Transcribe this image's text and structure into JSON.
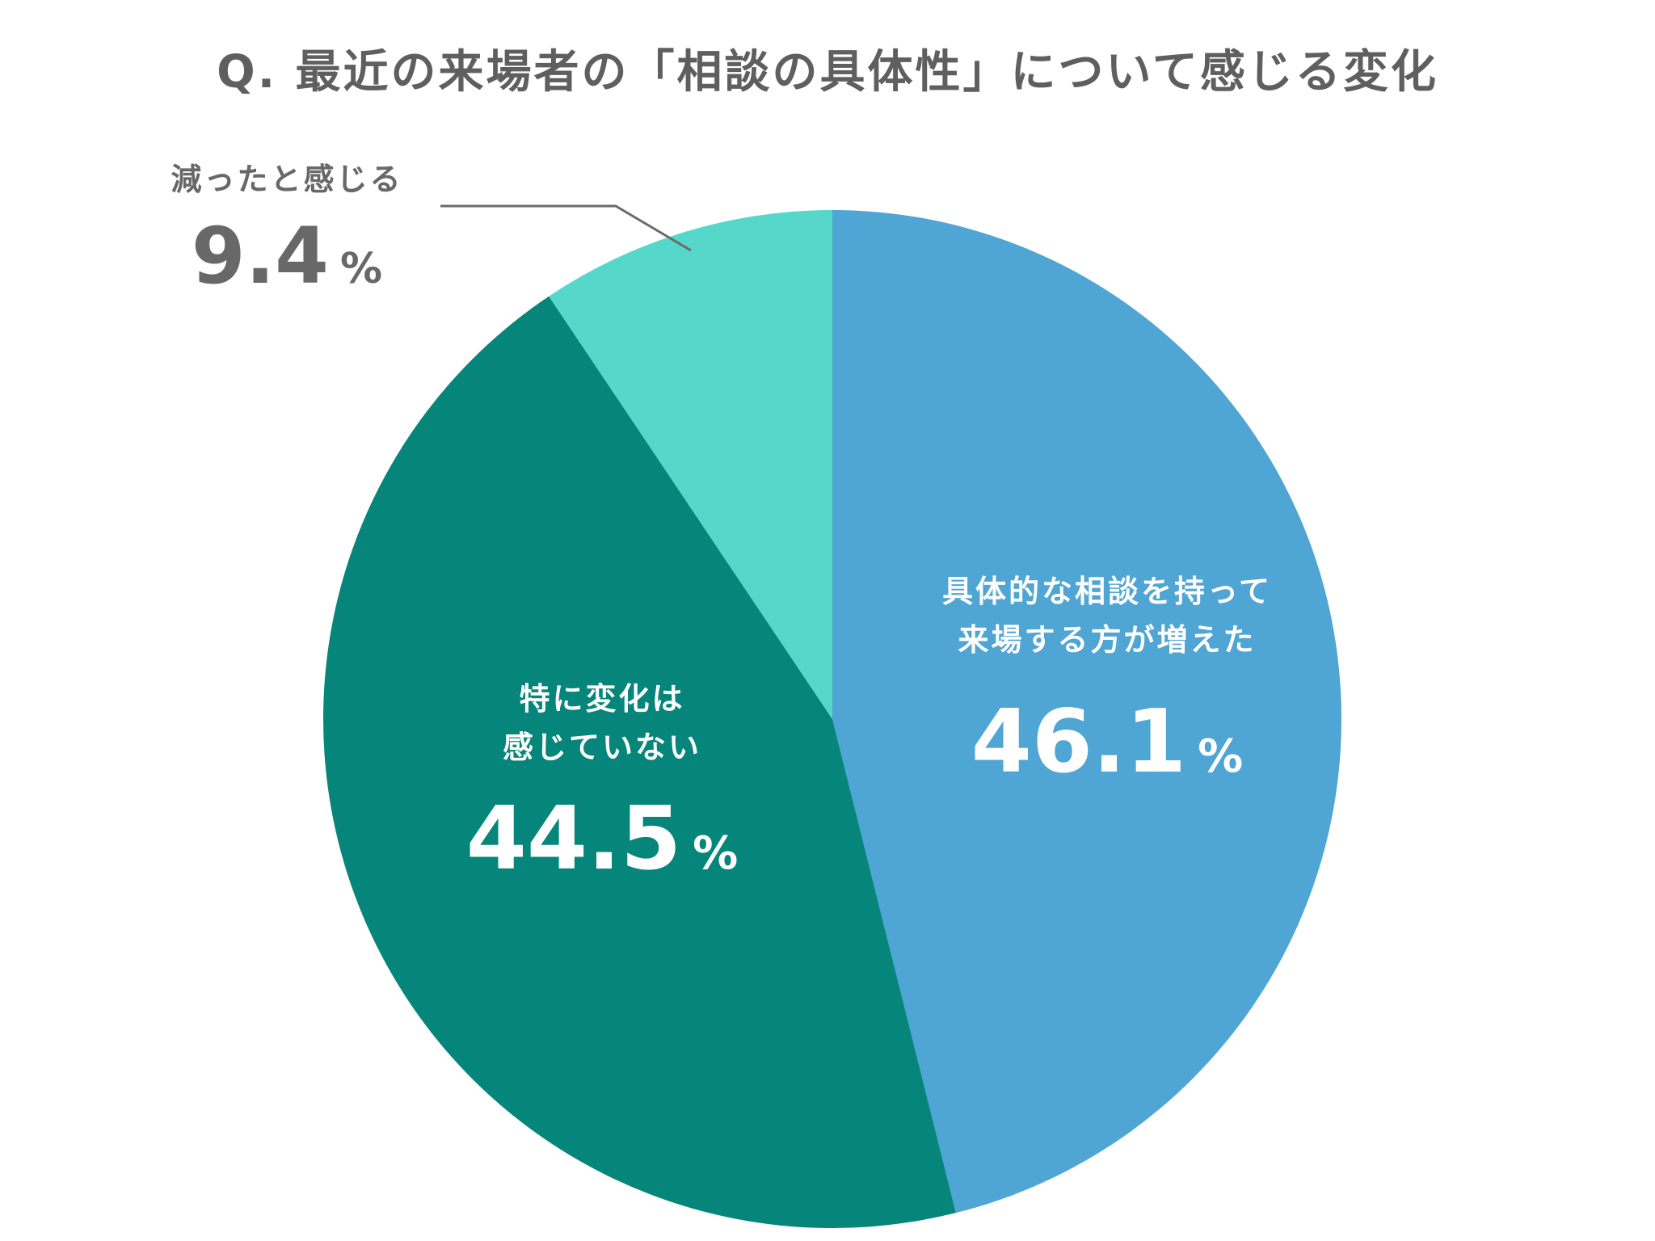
{
  "chart_data": {
    "type": "pie",
    "title": "Q. 最近の来場者の「相談の具体性」について感じる変化",
    "start_angle_deg": 0,
    "direction": "clockwise",
    "slices": [
      {
        "label_lines": [
          "具体的な相談を持って",
          "来場する方が増えた"
        ],
        "value": 46.1,
        "value_text": "46.1",
        "unit": "%",
        "color": "#4fa5d3",
        "label_color": "#ffffff",
        "label_placement": "inside"
      },
      {
        "label_lines": [
          "特に変化は",
          "感じていない"
        ],
        "value": 44.5,
        "value_text": "44.5",
        "unit": "%",
        "color": "#06857a",
        "label_color": "#ffffff",
        "label_placement": "inside"
      },
      {
        "label_lines": [
          "減ったと感じる"
        ],
        "value": 9.4,
        "value_text": "9.4",
        "unit": "%",
        "color": "#55d8c9",
        "label_color": "#686868",
        "label_placement": "outside-top-left"
      }
    ],
    "leader_line_color": "#6b6b6b"
  }
}
